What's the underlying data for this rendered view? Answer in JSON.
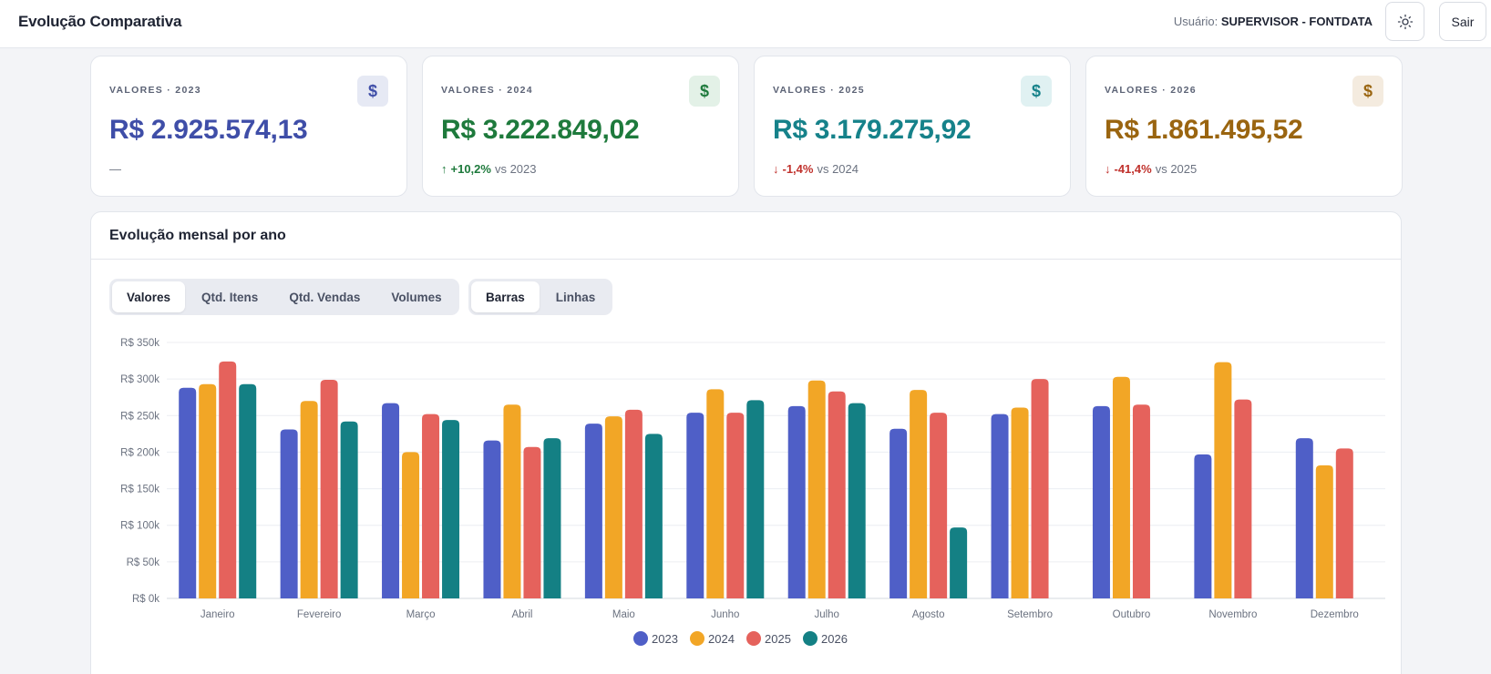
{
  "header": {
    "title": "Evolução Comparativa",
    "user_prefix": "Usuário:",
    "user_name": "SUPERVISOR - FONTDATA",
    "theme_icon": "sun-icon",
    "logout_label": "Sair"
  },
  "kpis": [
    {
      "label": "VALORES · 2023",
      "value": "R$ 2.925.574,13",
      "delta_text": "—",
      "color": "#3f4ea8",
      "icon_bg": "#e6e9f4",
      "icon": "dollar-icon"
    },
    {
      "label": "VALORES · 2024",
      "value": "R$ 3.222.849,02",
      "delta_pct": "+10,2%",
      "delta_vs": "vs 2023",
      "direction": "up",
      "color": "#1e7a3c",
      "icon_bg": "#e3f1e7",
      "icon": "dollar-icon"
    },
    {
      "label": "VALORES · 2025",
      "value": "R$ 3.179.275,92",
      "delta_pct": "-1,4%",
      "delta_vs": "vs 2024",
      "direction": "down",
      "color": "#16828a",
      "icon_bg": "#e0f1f2",
      "icon": "dollar-icon"
    },
    {
      "label": "VALORES · 2026",
      "value": "R$ 1.861.495,52",
      "delta_pct": "-41,4%",
      "delta_vs": "vs 2025",
      "direction": "down",
      "color": "#9a6510",
      "icon_bg": "#f4ebdf",
      "icon": "dollar-icon"
    }
  ],
  "chart_section": {
    "title": "Evolução mensal por ano",
    "metric_tabs": [
      "Valores",
      "Qtd. Itens",
      "Qtd. Vendas",
      "Volumes"
    ],
    "metric_active": "Valores",
    "type_tabs": [
      "Barras",
      "Linhas"
    ],
    "type_active": "Barras"
  },
  "chart_data": {
    "type": "bar",
    "categories": [
      "Janeiro",
      "Fevereiro",
      "Março",
      "Abril",
      "Maio",
      "Junho",
      "Julho",
      "Agosto",
      "Setembro",
      "Outubro",
      "Novembro",
      "Dezembro"
    ],
    "series": [
      {
        "name": "2023",
        "color": "#4f5fc7",
        "values": [
          288000,
          231000,
          267000,
          216000,
          239000,
          254000,
          263000,
          232000,
          252000,
          263000,
          197000,
          219000
        ]
      },
      {
        "name": "2024",
        "color": "#f2a626",
        "values": [
          293000,
          270000,
          200000,
          265000,
          249000,
          286000,
          298000,
          285000,
          261000,
          303000,
          323000,
          182000
        ]
      },
      {
        "name": "2025",
        "color": "#e5625c",
        "values": [
          324000,
          299000,
          252000,
          207000,
          258000,
          254000,
          283000,
          254000,
          300000,
          265000,
          272000,
          205000
        ]
      },
      {
        "name": "2026",
        "color": "#148084",
        "values": [
          293000,
          242000,
          244000,
          219000,
          225000,
          271000,
          267000,
          97000,
          null,
          null,
          null,
          null
        ]
      }
    ],
    "y_ticks": [
      "R$ 0k",
      "R$ 50k",
      "R$ 100k",
      "R$ 150k",
      "R$ 200k",
      "R$ 250k",
      "R$ 300k",
      "R$ 350k"
    ],
    "ylim": [
      0,
      350000
    ],
    "grid": true,
    "legend": "bottom-center"
  }
}
